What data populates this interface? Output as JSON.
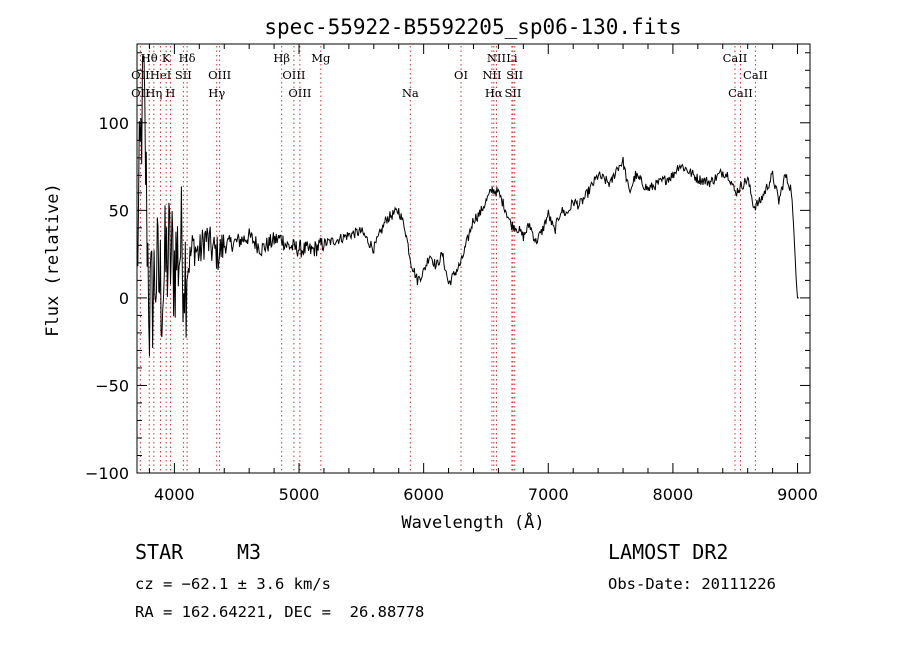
{
  "chart_data": {
    "type": "line",
    "title": "spec-55922-B5592205_sp06-130.fits",
    "xlabel": "Wavelength (Å)",
    "ylabel": "Flux (relative)",
    "xlim": [
      3700,
      9100
    ],
    "ylim": [
      -100,
      145
    ],
    "x_ticks": [
      "4000",
      "5000",
      "6000",
      "7000",
      "8000",
      "9000"
    ],
    "y_ticks": [
      "−100",
      "−50",
      "0",
      "50",
      "100"
    ],
    "grid": false,
    "line_color": "#000000",
    "marker_color": "#cc3333",
    "series": [
      {
        "wavelength": [
          3700,
          3750,
          3800,
          3850,
          3900,
          3950,
          4000,
          4050,
          4100,
          4150,
          4200,
          4250,
          4300,
          4350,
          4400,
          4500,
          4600,
          4700,
          4800,
          4860,
          4900,
          5000,
          5100,
          5200,
          5300,
          5400,
          5500,
          5600,
          5700,
          5800,
          5850,
          5900,
          5950,
          6000,
          6050,
          6100,
          6150,
          6200,
          6300,
          6400,
          6450,
          6500,
          6550,
          6600,
          6650,
          6700,
          6750,
          6800,
          6850,
          6900,
          6950,
          7000,
          7050,
          7100,
          7150,
          7200,
          7250,
          7300,
          7400,
          7500,
          7550,
          7600,
          7650,
          7700,
          7800,
          7900,
          8000,
          8050,
          8100,
          8200,
          8300,
          8400,
          8450,
          8500,
          8600,
          8650,
          8700,
          8800,
          8850,
          8900,
          8950,
          9000,
          9010
        ],
        "flux": [
          20,
          130,
          -10,
          15,
          5,
          25,
          20,
          30,
          15,
          30,
          25,
          35,
          28,
          25,
          30,
          32,
          35,
          28,
          33,
          34,
          30,
          28,
          27,
          31,
          33,
          36,
          38,
          28,
          45,
          50,
          40,
          20,
          10,
          15,
          25,
          18,
          25,
          8,
          20,
          45,
          48,
          55,
          62,
          60,
          52,
          42,
          40,
          35,
          42,
          32,
          38,
          48,
          38,
          50,
          48,
          55,
          53,
          58,
          70,
          65,
          74,
          78,
          60,
          70,
          62,
          66,
          70,
          76,
          74,
          68,
          66,
          72,
          70,
          60,
          68,
          52,
          55,
          70,
          55,
          70,
          62,
          0,
          0
        ]
      }
    ],
    "line_markers": [
      {
        "label": "Hθ",
        "wavelength": 3798,
        "row": 1
      },
      {
        "label": "K",
        "wavelength": 3934,
        "row": 1
      },
      {
        "label": "Hδ",
        "wavelength": 4102,
        "row": 1
      },
      {
        "label": "Hβ",
        "wavelength": 4861,
        "row": 1
      },
      {
        "label": "Mg",
        "wavelength": 5175,
        "row": 1
      },
      {
        "label": "NII",
        "wavelength": 6584,
        "row": 1
      },
      {
        "label": "Li",
        "wavelength": 6708,
        "row": 1
      },
      {
        "label": "CaII",
        "wavelength": 8498,
        "row": 1
      },
      {
        "label": "OII",
        "wavelength": 3727,
        "row": 2
      },
      {
        "label": "HeI",
        "wavelength": 3889,
        "row": 2
      },
      {
        "label": "SII",
        "wavelength": 4072,
        "row": 2
      },
      {
        "label": "OIII",
        "wavelength": 4363,
        "row": 2
      },
      {
        "label": "OIII",
        "wavelength": 4959,
        "row": 2
      },
      {
        "label": "OI",
        "wavelength": 6300,
        "row": 2
      },
      {
        "label": "NII",
        "wavelength": 6548,
        "row": 2
      },
      {
        "label": "SII",
        "wavelength": 6731,
        "row": 2
      },
      {
        "label": "CaII",
        "wavelength": 8662,
        "row": 2
      },
      {
        "label": "OII",
        "wavelength": 3727,
        "row": 3
      },
      {
        "label": "Hη",
        "wavelength": 3835,
        "row": 3
      },
      {
        "label": "H",
        "wavelength": 3968,
        "row": 3
      },
      {
        "label": "Hγ",
        "wavelength": 4340,
        "row": 3
      },
      {
        "label": "OIII",
        "wavelength": 5007,
        "row": 3
      },
      {
        "label": "Na",
        "wavelength": 5893,
        "row": 3
      },
      {
        "label": "Hα",
        "wavelength": 6563,
        "row": 3
      },
      {
        "label": "SII",
        "wavelength": 6717,
        "row": 3
      },
      {
        "label": "CaII",
        "wavelength": 8542,
        "row": 3
      }
    ]
  },
  "info": {
    "object_class": "STAR",
    "subclass": "M3",
    "survey": "LAMOST DR2",
    "cz": "cz = −62.1 ± 3.6 km/s",
    "obs_date": "Obs-Date: 20111226",
    "coords": "RA = 162.64221, DEC =  26.88778"
  }
}
